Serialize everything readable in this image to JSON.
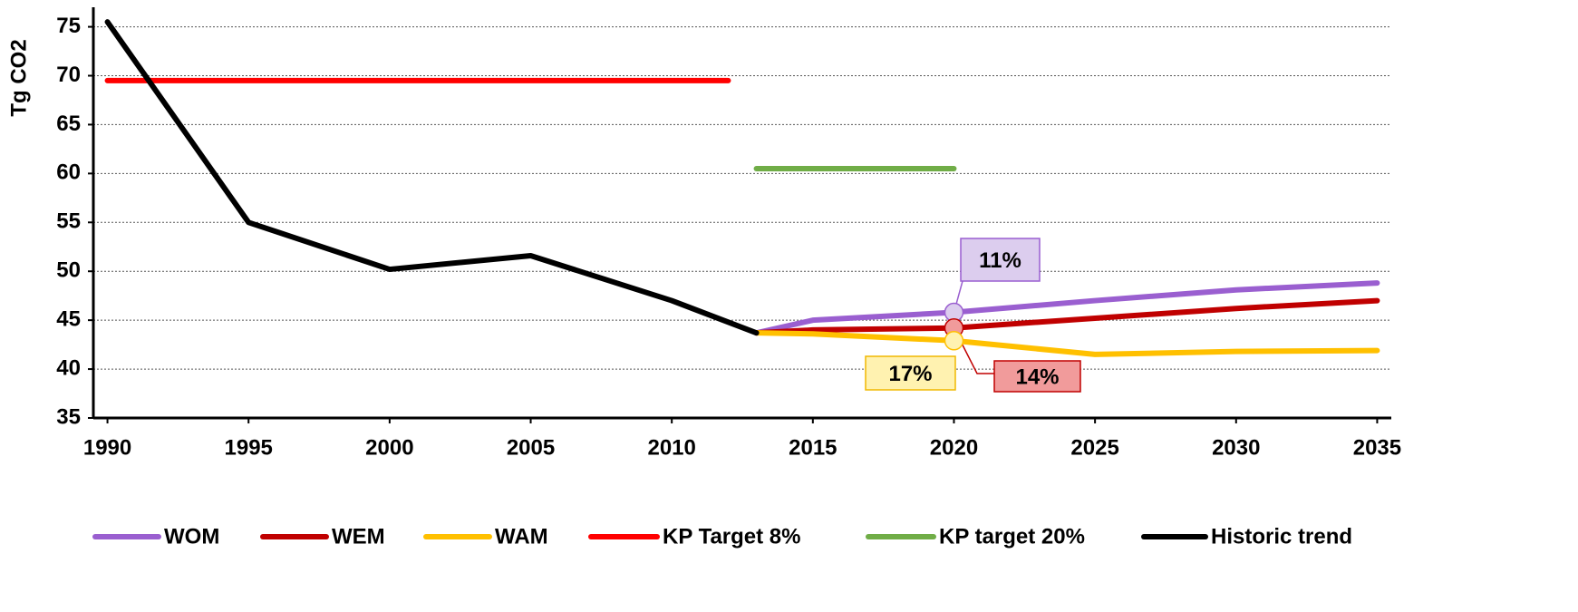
{
  "chart_data": {
    "type": "line",
    "y_label": "Tg CO2",
    "xlim": [
      1989.5,
      2035.5
    ],
    "xticks": [
      1990,
      1995,
      2000,
      2005,
      2010,
      2015,
      2020,
      2025,
      2030,
      2035
    ],
    "ylim": [
      35,
      77
    ],
    "yticks": [
      35,
      40,
      45,
      50,
      55,
      60,
      65,
      70,
      75
    ],
    "grid": true,
    "legend": "bottom",
    "series": [
      {
        "name": "WOM",
        "color": "#9a5fd0",
        "x": [
          2013,
          2015,
          2020,
          2025,
          2030,
          2035
        ],
        "values": [
          43.7,
          45,
          45.8,
          47,
          48.1,
          48.8
        ]
      },
      {
        "name": "WEM",
        "color": "#c00000",
        "x": [
          2013,
          2015,
          2020,
          2025,
          2030,
          2035
        ],
        "values": [
          43.7,
          44,
          44.2,
          45.2,
          46.2,
          47
        ]
      },
      {
        "name": "WAM",
        "color": "#ffc000",
        "x": [
          2013,
          2015,
          2020,
          2025,
          2030,
          2035
        ],
        "values": [
          43.7,
          43.6,
          42.9,
          41.5,
          41.8,
          41.9
        ]
      },
      {
        "name": "KP Target 8%",
        "color": "#ff0000",
        "x": [
          1990,
          2012
        ],
        "values": [
          69.5,
          69.5
        ]
      },
      {
        "name": "KP target 20%",
        "color": "#70ad47",
        "x": [
          2013,
          2020
        ],
        "values": [
          60.5,
          60.5
        ]
      },
      {
        "name": "Historic trend",
        "color": "#000000",
        "x": [
          1990,
          1995,
          2000,
          2005,
          2010,
          2013
        ],
        "values": [
          75.5,
          55,
          50.2,
          51.6,
          47,
          43.7
        ]
      }
    ],
    "annotations": [
      {
        "text": "11%",
        "series": 0,
        "point": 2
      },
      {
        "text": "14%",
        "series": 1,
        "point": 2
      },
      {
        "text": "17%",
        "series": 2,
        "point": 2
      }
    ]
  }
}
